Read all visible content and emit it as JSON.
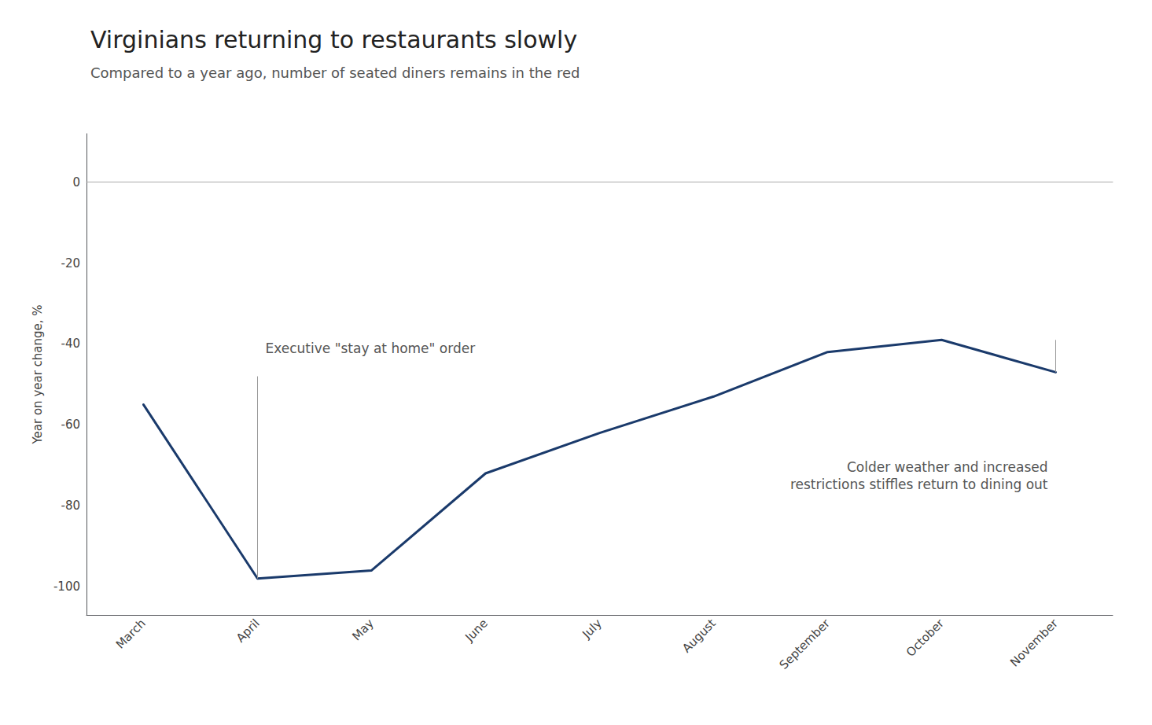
{
  "chart_data": {
    "type": "line",
    "title": "Virginians returning to restaurants slowly",
    "subtitle": "Compared to a year ago, number of seated diners remains in the red",
    "ylabel": "Year on year change, %",
    "categories": [
      "March",
      "April",
      "May",
      "June",
      "July",
      "August",
      "September",
      "October",
      "November"
    ],
    "values": [
      -55,
      -98,
      -96,
      -72,
      -62,
      -53,
      -42,
      -39,
      -47
    ],
    "color": "#1a3a6b",
    "ylim": [
      -107,
      12
    ],
    "yticks": [
      0,
      -20,
      -40,
      -60,
      -80,
      -100
    ],
    "grid": false,
    "annotations": [
      {
        "text": "Executive \"stay at home\" order",
        "x": "April",
        "line": [
          -48,
          -98
        ]
      },
      {
        "text": "Colder weather and increased\nrestrictions stiffles return to dining out",
        "x": "November",
        "line": [
          -39,
          -47
        ]
      }
    ]
  }
}
